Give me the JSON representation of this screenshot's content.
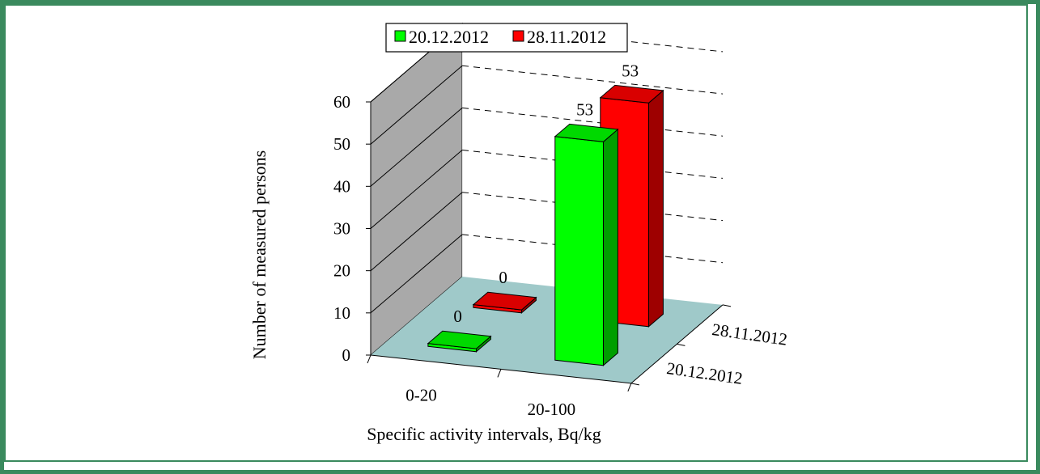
{
  "chart_data": {
    "type": "bar",
    "title": "",
    "xlabel": "Specific activity intervals, Bq/kg",
    "ylabel": "Number of measured persons",
    "zlabel": "",
    "categories": [
      "0-20",
      "20-100"
    ],
    "series": [
      {
        "name": "20.12.2012",
        "values": [
          0,
          53
        ],
        "color": "#00ff00"
      },
      {
        "name": "28.11.2012",
        "values": [
          0,
          53
        ],
        "color": "#ff0000"
      }
    ],
    "ylim": [
      0,
      60
    ],
    "yticks": [
      "0",
      "10",
      "20",
      "30",
      "40",
      "50",
      "60"
    ],
    "depth_labels": [
      "28.11.2012",
      "20.12.2012"
    ],
    "legend_position": "top",
    "grid": true,
    "floor_color": "#9fc9c9",
    "wall_color": "#a9a9a9",
    "frame_color": "#3a8a5e"
  }
}
